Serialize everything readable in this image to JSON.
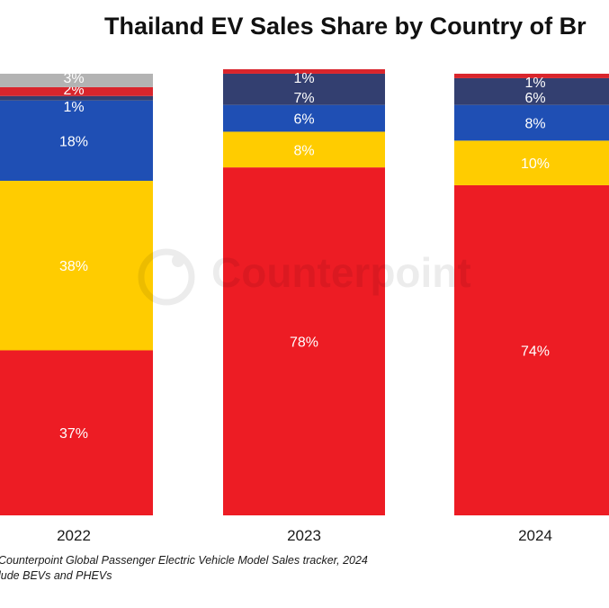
{
  "title": "Thailand EV Sales Share by Country of Br",
  "watermark": "Counterpoint",
  "footnotes": [
    "Counterpoint Global Passenger Electric Vehicle Model Sales tracker, 2024",
    "lude BEVs and PHEVs"
  ],
  "chart_data": {
    "type": "bar",
    "stacked": true,
    "title": "Thailand EV Sales Share by Country of Br",
    "categories": [
      "2022",
      "2023",
      "2024"
    ],
    "ylim": [
      0,
      100
    ],
    "grid": false,
    "series": [
      {
        "color": "#ED1C24",
        "values": [
          37,
          78,
          74
        ],
        "labels": [
          "37%",
          "78%",
          "74%"
        ]
      },
      {
        "color": "#FFCC00",
        "values": [
          38,
          8,
          10
        ],
        "labels": [
          "38%",
          "8%",
          "10%"
        ]
      },
      {
        "color": "#1F4FB4",
        "values": [
          18,
          6,
          8
        ],
        "labels": [
          "18%",
          "6%",
          "8%"
        ]
      },
      {
        "color": "#333F70",
        "values": [
          1,
          7,
          6
        ],
        "labels": [
          "1%",
          "7%",
          "6%"
        ]
      },
      {
        "color": "#D9252C",
        "values": [
          2,
          1,
          1
        ],
        "labels": [
          "2%",
          "1%",
          "1%"
        ]
      },
      {
        "color": "#B3B3B3",
        "values": [
          3,
          0,
          0
        ],
        "labels": [
          "3%",
          "",
          ""
        ]
      }
    ]
  }
}
